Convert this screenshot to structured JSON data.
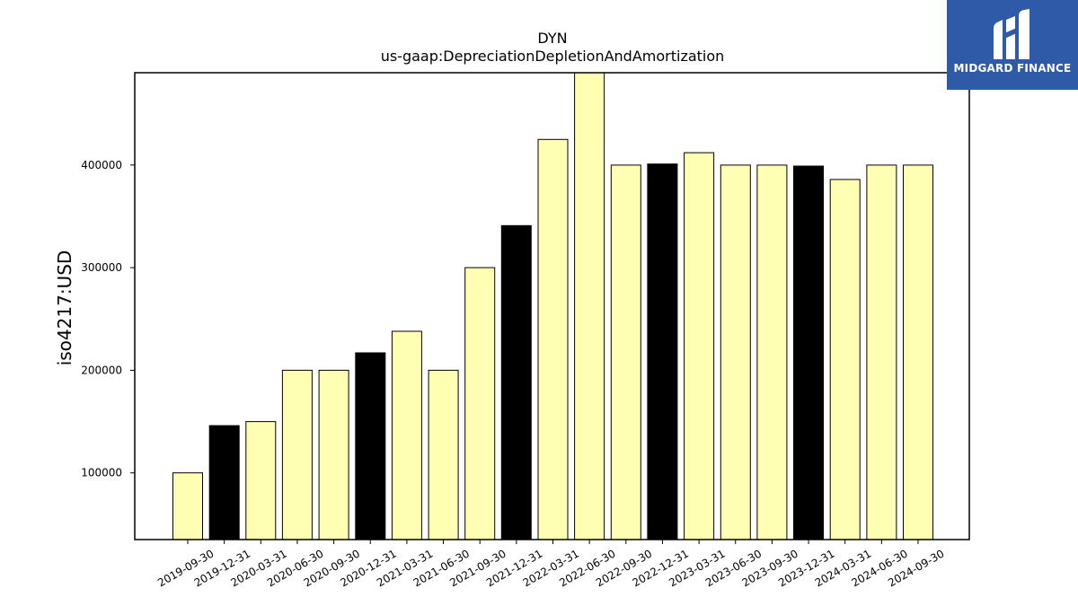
{
  "brand": {
    "logo_text": "MIDGARD FINANCE",
    "color": "#2f5aa8"
  },
  "chart_data": {
    "type": "bar",
    "title": "DYN",
    "subtitle": "us-gaap:DepreciationDepletionAndAmortization",
    "ylabel": "iso4217:USD",
    "xlabel": "",
    "ylim": [
      35000,
      490000
    ],
    "yticks": [
      100000,
      200000,
      300000,
      400000
    ],
    "grid": false,
    "categories": [
      "2019-09-30",
      "2019-12-31",
      "2020-03-31",
      "2020-06-30",
      "2020-09-30",
      "2020-12-31",
      "2021-03-31",
      "2021-06-30",
      "2021-09-30",
      "2021-12-31",
      "2022-03-31",
      "2022-06-30",
      "2022-09-30",
      "2022-12-31",
      "2023-03-31",
      "2023-06-30",
      "2023-09-30",
      "2023-12-31",
      "2024-03-31",
      "2024-06-30",
      "2024-09-30"
    ],
    "values": [
      100000,
      146000,
      150000,
      200000,
      200000,
      217000,
      238000,
      200000,
      300000,
      341000,
      425000,
      495000,
      400000,
      401000,
      412000,
      400000,
      400000,
      399000,
      386000,
      400000,
      400000
    ],
    "bar_colors": [
      "#ffffb3",
      "#000000",
      "#ffffb3",
      "#ffffb3",
      "#ffffb3",
      "#000000",
      "#ffffb3",
      "#ffffb3",
      "#ffffb3",
      "#000000",
      "#ffffb3",
      "#ffffb3",
      "#ffffb3",
      "#000000",
      "#ffffb3",
      "#ffffb3",
      "#ffffb3",
      "#000000",
      "#ffffb3",
      "#ffffb3",
      "#ffffb3"
    ]
  }
}
